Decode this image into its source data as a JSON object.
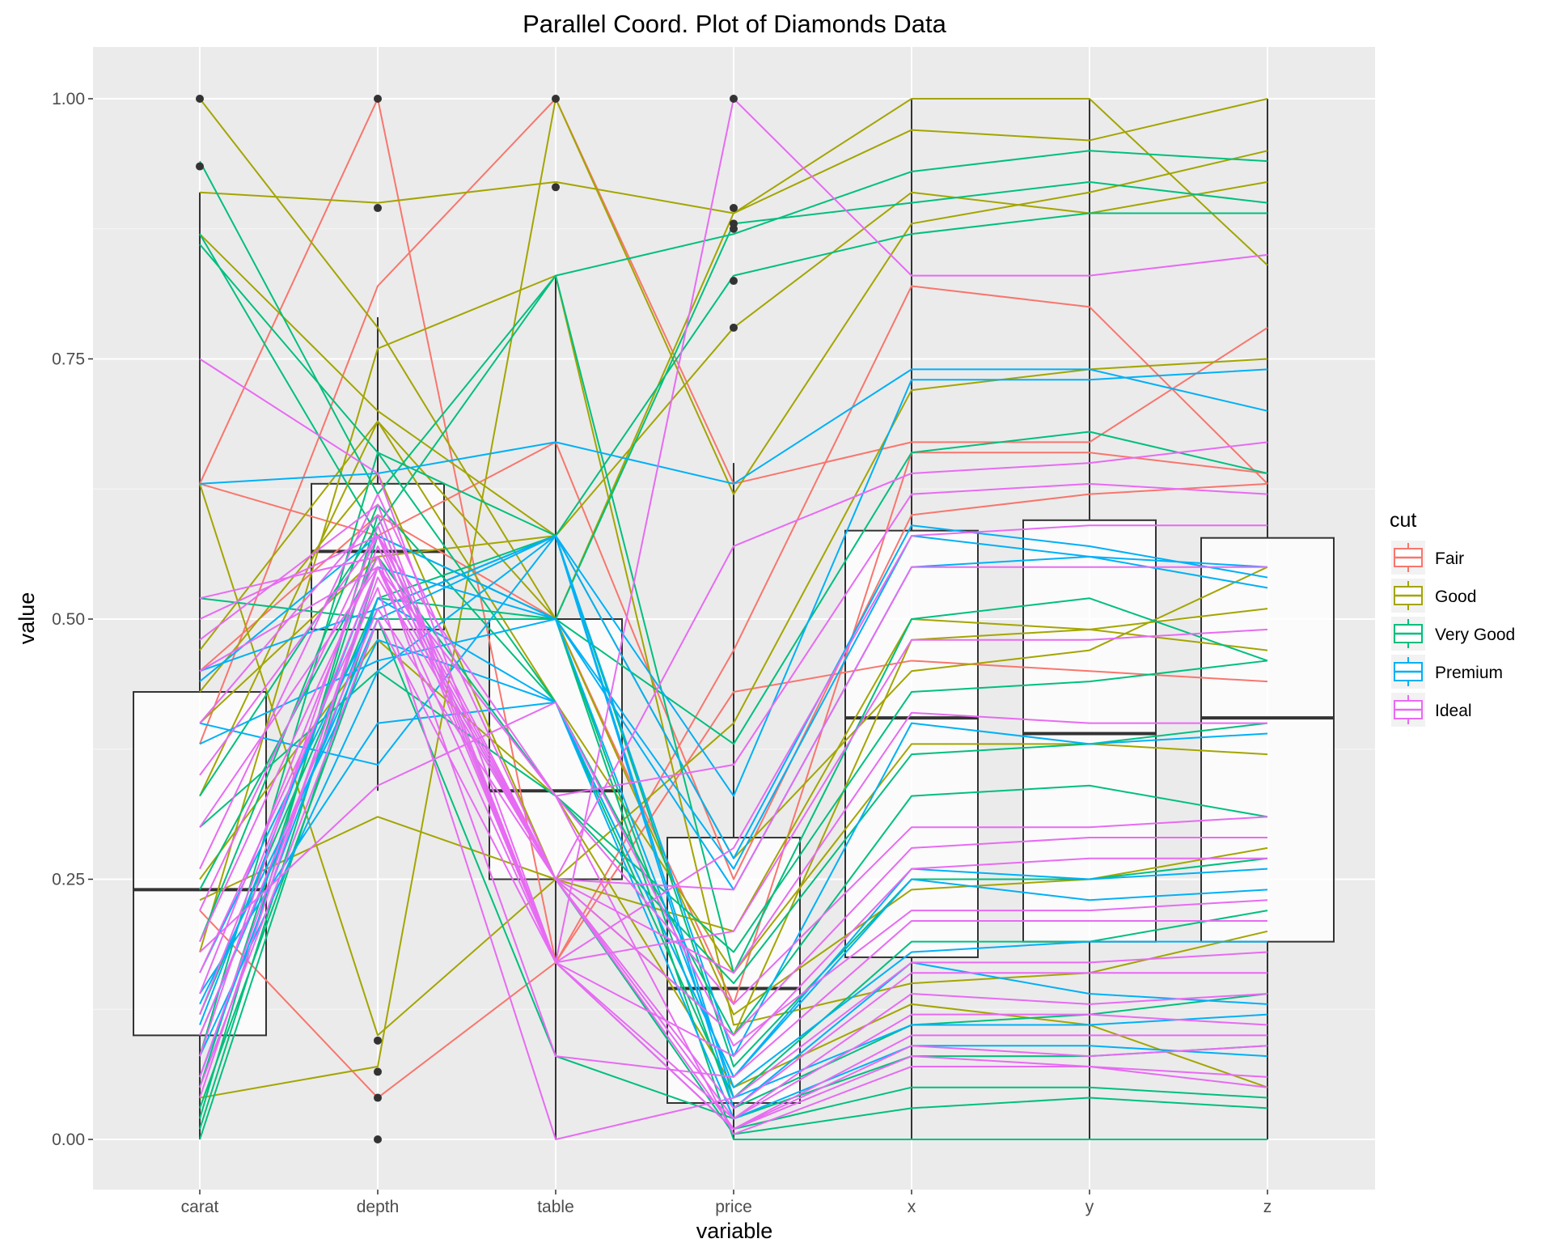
{
  "chart_data": {
    "type": "parallel-coordinates",
    "title": "Parallel Coord. Plot of Diamonds Data",
    "xlabel": "variable",
    "ylabel": "value",
    "ylim": [
      0,
      1
    ],
    "yticks": [
      "0.00",
      "0.25",
      "0.50",
      "0.75",
      "1.00"
    ],
    "ytick_values": [
      0,
      0.25,
      0.5,
      0.75,
      1.0
    ],
    "categories": [
      "carat",
      "depth",
      "table",
      "price",
      "x",
      "y",
      "z"
    ],
    "grid": true,
    "legend": {
      "title": "cut",
      "placement": "right"
    },
    "series": [
      {
        "name": "Fair",
        "color": "#F8766D",
        "lines": [
          [
            0.63,
            1.0,
            0.17,
            0.47,
            0.82,
            0.8,
            0.63
          ],
          [
            0.38,
            0.82,
            1.0,
            0.63,
            0.67,
            0.67,
            0.78
          ],
          [
            0.22,
            0.04,
            0.17,
            0.43,
            0.46,
            0.45,
            0.44
          ],
          [
            0.63,
            0.58,
            0.67,
            0.25,
            0.6,
            0.62,
            0.63
          ],
          [
            0.45,
            0.6,
            0.5,
            0.13,
            0.66,
            0.66,
            0.64
          ]
        ]
      },
      {
        "name": "Good",
        "color": "#A3A500",
        "lines": [
          [
            1.0,
            0.78,
            0.5,
            0.89,
            1.0,
            1.0,
            0.84
          ],
          [
            0.91,
            0.9,
            0.92,
            0.89,
            0.97,
            0.96,
            1.0
          ],
          [
            0.87,
            0.7,
            0.58,
            0.78,
            0.91,
            0.89,
            0.92
          ],
          [
            0.04,
            0.07,
            1.0,
            0.62,
            0.88,
            0.91,
            0.95
          ],
          [
            0.63,
            0.1,
            0.25,
            0.4,
            0.72,
            0.74,
            0.75
          ],
          [
            0.23,
            0.31,
            0.25,
            0.2,
            0.5,
            0.49,
            0.51
          ],
          [
            0.4,
            0.56,
            0.58,
            0.27,
            0.45,
            0.47,
            0.55
          ],
          [
            0.33,
            0.69,
            0.42,
            0.16,
            0.38,
            0.38,
            0.37
          ],
          [
            0.47,
            0.69,
            0.5,
            0.12,
            0.24,
            0.25,
            0.28
          ],
          [
            0.25,
            0.48,
            0.33,
            0.05,
            0.13,
            0.11,
            0.05
          ],
          [
            0.43,
            0.64,
            0.25,
            0.1,
            0.48,
            0.49,
            0.47
          ],
          [
            0.18,
            0.76,
            0.83,
            0.11,
            0.15,
            0.16,
            0.2
          ]
        ]
      },
      {
        "name": "Very Good",
        "color": "#00BF7D",
        "lines": [
          [
            0.94,
            0.62,
            0.83,
            0.87,
            0.93,
            0.95,
            0.94
          ],
          [
            0.87,
            0.58,
            0.5,
            0.88,
            0.9,
            0.92,
            0.9
          ],
          [
            0.86,
            0.66,
            0.58,
            0.83,
            0.87,
            0.89,
            0.89
          ],
          [
            0.52,
            0.5,
            0.5,
            0.38,
            0.66,
            0.68,
            0.64
          ],
          [
            0.33,
            0.59,
            0.83,
            0.16,
            0.5,
            0.52,
            0.46
          ],
          [
            0.24,
            0.56,
            0.33,
            0.15,
            0.37,
            0.38,
            0.4
          ],
          [
            0.19,
            0.61,
            0.42,
            0.1,
            0.33,
            0.34,
            0.31
          ],
          [
            0.12,
            0.52,
            0.58,
            0.07,
            0.25,
            0.25,
            0.27
          ],
          [
            0.08,
            0.66,
            0.42,
            0.04,
            0.19,
            0.19,
            0.22
          ],
          [
            0.05,
            0.58,
            0.5,
            0.03,
            0.11,
            0.12,
            0.14
          ],
          [
            0.03,
            0.5,
            0.08,
            0.02,
            0.08,
            0.08,
            0.09
          ],
          [
            0.02,
            0.6,
            0.17,
            0.01,
            0.05,
            0.05,
            0.04
          ],
          [
            0.01,
            0.55,
            0.25,
            0.005,
            0.03,
            0.04,
            0.03
          ],
          [
            0.0,
            0.52,
            0.5,
            0.0,
            0.0,
            0.0,
            0.0
          ],
          [
            0.3,
            0.45,
            0.33,
            0.18,
            0.43,
            0.44,
            0.46
          ]
        ]
      },
      {
        "name": "Premium",
        "color": "#00B0F6",
        "lines": [
          [
            0.63,
            0.64,
            0.67,
            0.63,
            0.74,
            0.74,
            0.7
          ],
          [
            0.45,
            0.51,
            0.58,
            0.33,
            0.73,
            0.73,
            0.74
          ],
          [
            0.4,
            0.36,
            0.58,
            0.27,
            0.59,
            0.57,
            0.54
          ],
          [
            0.38,
            0.46,
            0.5,
            0.24,
            0.55,
            0.56,
            0.53
          ],
          [
            0.16,
            0.51,
            0.58,
            0.08,
            0.4,
            0.38,
            0.39
          ],
          [
            0.13,
            0.48,
            0.42,
            0.06,
            0.25,
            0.23,
            0.24
          ],
          [
            0.11,
            0.55,
            0.5,
            0.05,
            0.18,
            0.19,
            0.19
          ],
          [
            0.08,
            0.45,
            0.58,
            0.03,
            0.17,
            0.14,
            0.13
          ],
          [
            0.06,
            0.52,
            0.42,
            0.02,
            0.09,
            0.09,
            0.08
          ],
          [
            0.1,
            0.5,
            0.58,
            0.04,
            0.11,
            0.11,
            0.12
          ],
          [
            0.14,
            0.4,
            0.42,
            0.06,
            0.26,
            0.25,
            0.26
          ],
          [
            0.44,
            0.58,
            0.5,
            0.26,
            0.58,
            0.56,
            0.55
          ]
        ]
      },
      {
        "name": "Ideal",
        "color": "#E76BF3",
        "lines": [
          [
            0.75,
            0.64,
            0.17,
            1.0,
            0.83,
            0.83,
            0.85
          ],
          [
            0.52,
            0.56,
            0.25,
            0.57,
            0.64,
            0.65,
            0.67
          ],
          [
            0.5,
            0.58,
            0.33,
            0.36,
            0.62,
            0.63,
            0.62
          ],
          [
            0.48,
            0.61,
            0.17,
            0.28,
            0.58,
            0.59,
            0.59
          ],
          [
            0.45,
            0.55,
            0.25,
            0.24,
            0.55,
            0.55,
            0.55
          ],
          [
            0.4,
            0.6,
            0.17,
            0.2,
            0.48,
            0.48,
            0.49
          ],
          [
            0.35,
            0.58,
            0.25,
            0.16,
            0.41,
            0.4,
            0.4
          ],
          [
            0.3,
            0.55,
            0.33,
            0.13,
            0.3,
            0.3,
            0.31
          ],
          [
            0.26,
            0.62,
            0.25,
            0.1,
            0.28,
            0.29,
            0.29
          ],
          [
            0.22,
            0.58,
            0.17,
            0.08,
            0.26,
            0.27,
            0.27
          ],
          [
            0.19,
            0.56,
            0.08,
            0.06,
            0.21,
            0.21,
            0.21
          ],
          [
            0.16,
            0.53,
            0.0,
            0.04,
            0.17,
            0.17,
            0.18
          ],
          [
            0.14,
            0.57,
            0.25,
            0.03,
            0.16,
            0.16,
            0.16
          ],
          [
            0.12,
            0.55,
            0.17,
            0.02,
            0.14,
            0.13,
            0.14
          ],
          [
            0.1,
            0.51,
            0.25,
            0.02,
            0.12,
            0.12,
            0.11
          ],
          [
            0.08,
            0.59,
            0.17,
            0.01,
            0.1,
            0.1,
            0.1
          ],
          [
            0.06,
            0.54,
            0.25,
            0.01,
            0.09,
            0.08,
            0.09
          ],
          [
            0.05,
            0.5,
            0.17,
            0.01,
            0.08,
            0.07,
            0.06
          ],
          [
            0.04,
            0.55,
            0.33,
            0.005,
            0.07,
            0.07,
            0.05
          ],
          [
            0.18,
            0.34,
            0.42,
            0.09,
            0.22,
            0.22,
            0.23
          ]
        ]
      }
    ],
    "boxplots": [
      {
        "variable": "carat",
        "q1": 0.1,
        "median": 0.24,
        "q3": 0.43,
        "whisker_low": 0.0,
        "whisker_high": 0.91,
        "outliers": [
          0.935,
          1.0
        ]
      },
      {
        "variable": "depth",
        "q1": 0.49,
        "median": 0.565,
        "q3": 0.63,
        "whisker_low": 0.335,
        "whisker_high": 0.79,
        "outliers": [
          0.0,
          0.04,
          0.065,
          0.095,
          0.895,
          1.0
        ]
      },
      {
        "variable": "table",
        "q1": 0.25,
        "median": 0.335,
        "q3": 0.5,
        "whisker_low": 0.0,
        "whisker_high": 0.83,
        "outliers": [
          0.915,
          1.0
        ]
      },
      {
        "variable": "price",
        "q1": 0.035,
        "median": 0.145,
        "q3": 0.29,
        "whisker_low": 0.0,
        "whisker_high": 0.65,
        "outliers": [
          0.78,
          0.825,
          0.875,
          0.88,
          0.895,
          1.0
        ]
      },
      {
        "variable": "x",
        "q1": 0.175,
        "median": 0.405,
        "q3": 0.585,
        "whisker_low": 0.0,
        "whisker_high": 1.0,
        "outliers": []
      },
      {
        "variable": "y",
        "q1": 0.19,
        "median": 0.39,
        "q3": 0.595,
        "whisker_low": 0.0,
        "whisker_high": 1.0,
        "outliers": []
      },
      {
        "variable": "z",
        "q1": 0.19,
        "median": 0.405,
        "q3": 0.578,
        "whisker_low": 0.0,
        "whisker_high": 1.0,
        "outliers": []
      }
    ]
  }
}
